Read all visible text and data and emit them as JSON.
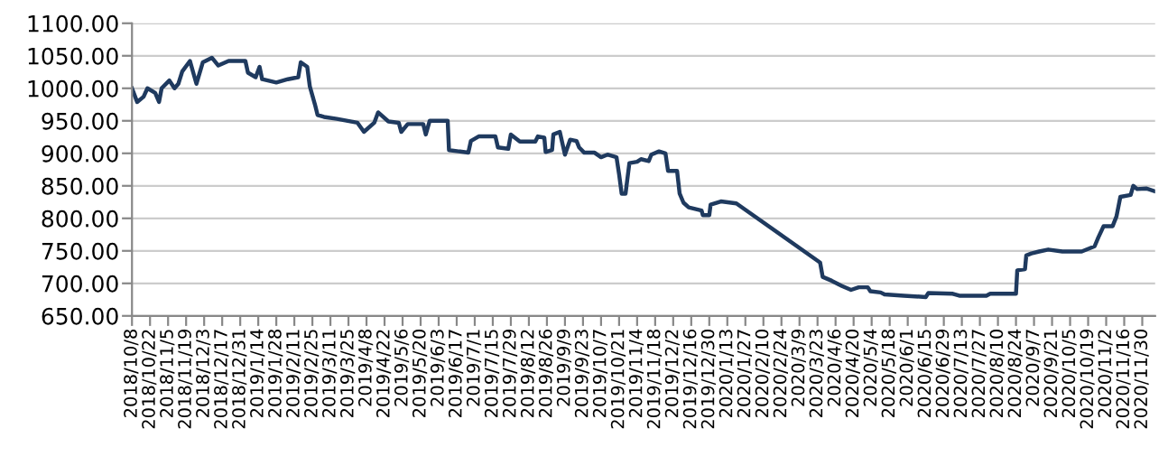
{
  "chart_data": {
    "type": "line",
    "color": "#1f3a5f",
    "grid": "y",
    "legend": false,
    "marker": "none",
    "line_style": "solid",
    "x": [
      "2018-10-08",
      "2018-10-12",
      "2018-10-17",
      "2018-10-20",
      "2018-10-26",
      "2018-10-29",
      "2018-10-31",
      "2018-11-06",
      "2018-11-10",
      "2018-11-13",
      "2018-11-16",
      "2018-11-22",
      "2018-11-27",
      "2018-12-02",
      "2018-12-09",
      "2018-12-14",
      "2018-12-22",
      "2019-01-04",
      "2019-01-06",
      "2019-01-12",
      "2019-01-15",
      "2019-01-17",
      "2019-01-28",
      "2019-02-06",
      "2019-02-14",
      "2019-02-16",
      "2019-02-21",
      "2019-02-23",
      "2019-02-27",
      "2019-03-01",
      "2019-03-06",
      "2019-03-16",
      "2019-04-01",
      "2019-04-06",
      "2019-04-14",
      "2019-04-17",
      "2019-04-25",
      "2019-05-03",
      "2019-05-05",
      "2019-05-10",
      "2019-05-22",
      "2019-05-24",
      "2019-05-27",
      "2019-06-10",
      "2019-06-11",
      "2019-06-26",
      "2019-06-28",
      "2019-07-04",
      "2019-07-17",
      "2019-07-19",
      "2019-07-27",
      "2019-07-29",
      "2019-08-05",
      "2019-08-17",
      "2019-08-19",
      "2019-08-24",
      "2019-08-25",
      "2019-08-30",
      "2019-08-31",
      "2019-09-05",
      "2019-09-09",
      "2019-09-13",
      "2019-09-18",
      "2019-09-20",
      "2019-09-24",
      "2019-10-02",
      "2019-10-07",
      "2019-10-12",
      "2019-10-19",
      "2019-10-21",
      "2019-10-23",
      "2019-10-26",
      "2019-10-29",
      "2019-11-04",
      "2019-11-07",
      "2019-11-13",
      "2019-11-15",
      "2019-11-21",
      "2019-11-26",
      "2019-11-28",
      "2019-12-05",
      "2019-12-07",
      "2019-12-10",
      "2019-12-14",
      "2019-12-24",
      "2019-12-25",
      "2019-12-30",
      "2019-12-31",
      "2020-01-08",
      "2020-01-20",
      "2020-03-25",
      "2020-03-27",
      "2020-04-03",
      "2020-04-11",
      "2020-04-18",
      "2020-04-24",
      "2020-05-01",
      "2020-05-03",
      "2020-05-11",
      "2020-05-14",
      "2020-05-29",
      "2020-06-15",
      "2020-06-17",
      "2020-07-06",
      "2020-07-11",
      "2020-08-01",
      "2020-08-04",
      "2020-08-24",
      "2020-08-25",
      "2020-08-31",
      "2020-09-01",
      "2020-09-05",
      "2020-09-11",
      "2020-09-18",
      "2020-09-29",
      "2020-10-14",
      "2020-10-24",
      "2020-10-27",
      "2020-10-31",
      "2020-11-07",
      "2020-11-10",
      "2020-11-13",
      "2020-11-21",
      "2020-11-23",
      "2020-11-26",
      "2020-12-03",
      "2020-12-09"
    ],
    "values": [
      1000,
      979,
      987,
      1000,
      993,
      979,
      1000,
      1012,
      1000,
      1007,
      1026,
      1042,
      1007,
      1040,
      1047,
      1035,
      1042,
      1042,
      1024,
      1017,
      1033,
      1014,
      1009,
      1014,
      1017,
      1040,
      1033,
      1003,
      975,
      959,
      956,
      953,
      947,
      933,
      947,
      963,
      949,
      947,
      933,
      945,
      945,
      929,
      950,
      950,
      905,
      901,
      919,
      926,
      926,
      909,
      907,
      929,
      918,
      918,
      926,
      924,
      902,
      905,
      929,
      933,
      898,
      921,
      919,
      909,
      901,
      901,
      894,
      898,
      894,
      868,
      838,
      838,
      885,
      887,
      891,
      888,
      898,
      903,
      900,
      873,
      873,
      838,
      824,
      817,
      812,
      805,
      805,
      821,
      826,
      823,
      732,
      710,
      704,
      696,
      690,
      694,
      694,
      688,
      686,
      683,
      681,
      679,
      685,
      684,
      681,
      681,
      684,
      684,
      720,
      722,
      743,
      746,
      749,
      752,
      749,
      749,
      757,
      771,
      788,
      788,
      803,
      833,
      836,
      850,
      845,
      846,
      842
    ],
    "ylim": [
      650,
      1100
    ],
    "yticks": [
      {
        "value": 650,
        "label": "650.00"
      },
      {
        "value": 700,
        "label": "700.00"
      },
      {
        "value": 750,
        "label": "750.00"
      },
      {
        "value": 800,
        "label": "800.00"
      },
      {
        "value": 850,
        "label": "850.00"
      },
      {
        "value": 900,
        "label": "900.00"
      },
      {
        "value": 950,
        "label": "950.00"
      },
      {
        "value": 1000,
        "label": "1000.00"
      },
      {
        "value": 1050,
        "label": "1050.00"
      },
      {
        "value": 1100,
        "label": "1100.00"
      }
    ],
    "xlim": [
      "2018-10-08",
      "2020-12-10"
    ],
    "xticks": [
      {
        "value": "2018-10-08",
        "label": "2018/10/8"
      },
      {
        "value": "2018-10-22",
        "label": "2018/10/22"
      },
      {
        "value": "2018-11-05",
        "label": "2018/11/5"
      },
      {
        "value": "2018-11-19",
        "label": "2018/11/19"
      },
      {
        "value": "2018-12-03",
        "label": "2018/12/3"
      },
      {
        "value": "2018-12-17",
        "label": "2018/12/17"
      },
      {
        "value": "2018-12-31",
        "label": "2018/12/31"
      },
      {
        "value": "2019-01-14",
        "label": "2019/1/14"
      },
      {
        "value": "2019-01-28",
        "label": "2019/1/28"
      },
      {
        "value": "2019-02-11",
        "label": "2019/2/11"
      },
      {
        "value": "2019-02-25",
        "label": "2019/2/25"
      },
      {
        "value": "2019-03-11",
        "label": "2019/3/11"
      },
      {
        "value": "2019-03-25",
        "label": "2019/3/25"
      },
      {
        "value": "2019-04-08",
        "label": "2019/4/8"
      },
      {
        "value": "2019-04-22",
        "label": "2019/4/22"
      },
      {
        "value": "2019-05-06",
        "label": "2019/5/6"
      },
      {
        "value": "2019-05-20",
        "label": "2019/5/20"
      },
      {
        "value": "2019-06-03",
        "label": "2019/6/3"
      },
      {
        "value": "2019-06-17",
        "label": "2019/6/17"
      },
      {
        "value": "2019-07-01",
        "label": "2019/7/1"
      },
      {
        "value": "2019-07-15",
        "label": "2019/7/15"
      },
      {
        "value": "2019-07-29",
        "label": "2019/7/29"
      },
      {
        "value": "2019-08-12",
        "label": "2019/8/12"
      },
      {
        "value": "2019-08-26",
        "label": "2019/8/26"
      },
      {
        "value": "2019-09-09",
        "label": "2019/9/9"
      },
      {
        "value": "2019-09-23",
        "label": "2019/9/23"
      },
      {
        "value": "2019-10-07",
        "label": "2019/10/7"
      },
      {
        "value": "2019-10-21",
        "label": "2019/10/21"
      },
      {
        "value": "2019-11-04",
        "label": "2019/11/4"
      },
      {
        "value": "2019-11-18",
        "label": "2019/11/18"
      },
      {
        "value": "2019-12-02",
        "label": "2019/12/2"
      },
      {
        "value": "2019-12-16",
        "label": "2019/12/16"
      },
      {
        "value": "2019-12-30",
        "label": "2019/12/30"
      },
      {
        "value": "2020-01-13",
        "label": "2020/1/13"
      },
      {
        "value": "2020-01-27",
        "label": "2020/1/27"
      },
      {
        "value": "2020-02-10",
        "label": "2020/2/10"
      },
      {
        "value": "2020-02-24",
        "label": "2020/2/24"
      },
      {
        "value": "2020-03-09",
        "label": "2020/3/9"
      },
      {
        "value": "2020-03-23",
        "label": "2020/3/23"
      },
      {
        "value": "2020-04-06",
        "label": "2020/4/6"
      },
      {
        "value": "2020-04-20",
        "label": "2020/4/20"
      },
      {
        "value": "2020-05-04",
        "label": "2020/5/4"
      },
      {
        "value": "2020-05-18",
        "label": "2020/5/18"
      },
      {
        "value": "2020-06-01",
        "label": "2020/6/1"
      },
      {
        "value": "2020-06-15",
        "label": "2020/6/15"
      },
      {
        "value": "2020-06-29",
        "label": "2020/6/29"
      },
      {
        "value": "2020-07-13",
        "label": "2020/7/13"
      },
      {
        "value": "2020-07-27",
        "label": "2020/7/27"
      },
      {
        "value": "2020-08-10",
        "label": "2020/8/10"
      },
      {
        "value": "2020-08-24",
        "label": "2020/8/24"
      },
      {
        "value": "2020-09-07",
        "label": "2020/9/7"
      },
      {
        "value": "2020-09-21",
        "label": "2020/9/21"
      },
      {
        "value": "2020-10-05",
        "label": "2020/10/5"
      },
      {
        "value": "2020-10-19",
        "label": "2020/10/19"
      },
      {
        "value": "2020-11-02",
        "label": "2020/11/2"
      },
      {
        "value": "2020-11-16",
        "label": "2020/11/16"
      },
      {
        "value": "2020-11-30",
        "label": "2020/11/30"
      }
    ]
  }
}
